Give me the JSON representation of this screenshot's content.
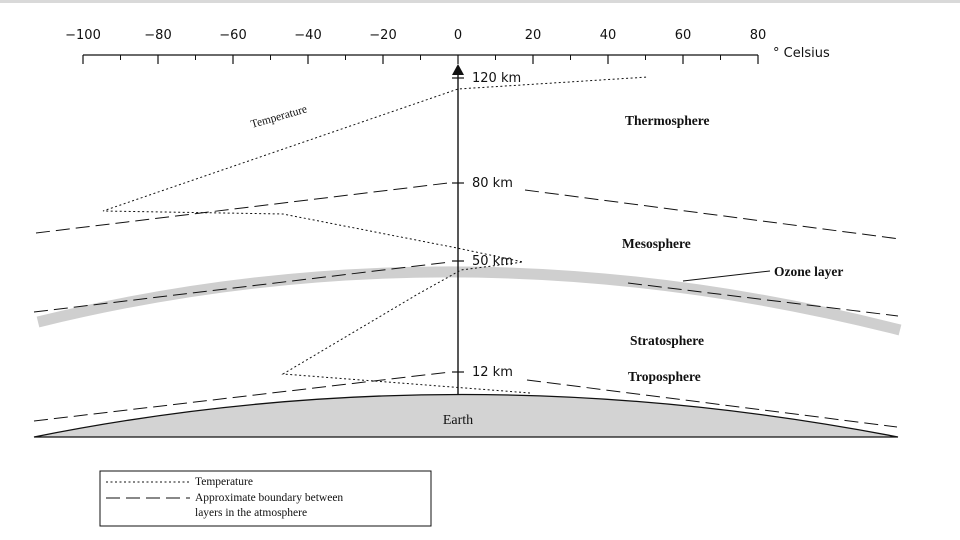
{
  "temperature_axis": {
    "unit_label": "° Celsius",
    "ticks": [
      "−100",
      "−80",
      "−60",
      "−40",
      "−20",
      "0",
      "20",
      "40",
      "60",
      "80"
    ]
  },
  "altitude_markers": [
    "120 km",
    "80 km",
    "50 km",
    "12 km"
  ],
  "curve_label": "Temperature",
  "layers": {
    "thermosphere": "Thermosphere",
    "mesosphere": "Mesosphere",
    "stratosphere": "Stratosphere",
    "troposphere": "Troposphere",
    "ozone": "Ozone layer",
    "earth": "Earth"
  },
  "legend": {
    "temperature": "Temperature",
    "boundary_line1": "Approximate boundary between",
    "boundary_line2": "layers in the atmosphere"
  },
  "colors": {
    "earth_fill": "#d3d3d3",
    "ozone_band": "#cfcfcf",
    "line": "#111111"
  }
}
